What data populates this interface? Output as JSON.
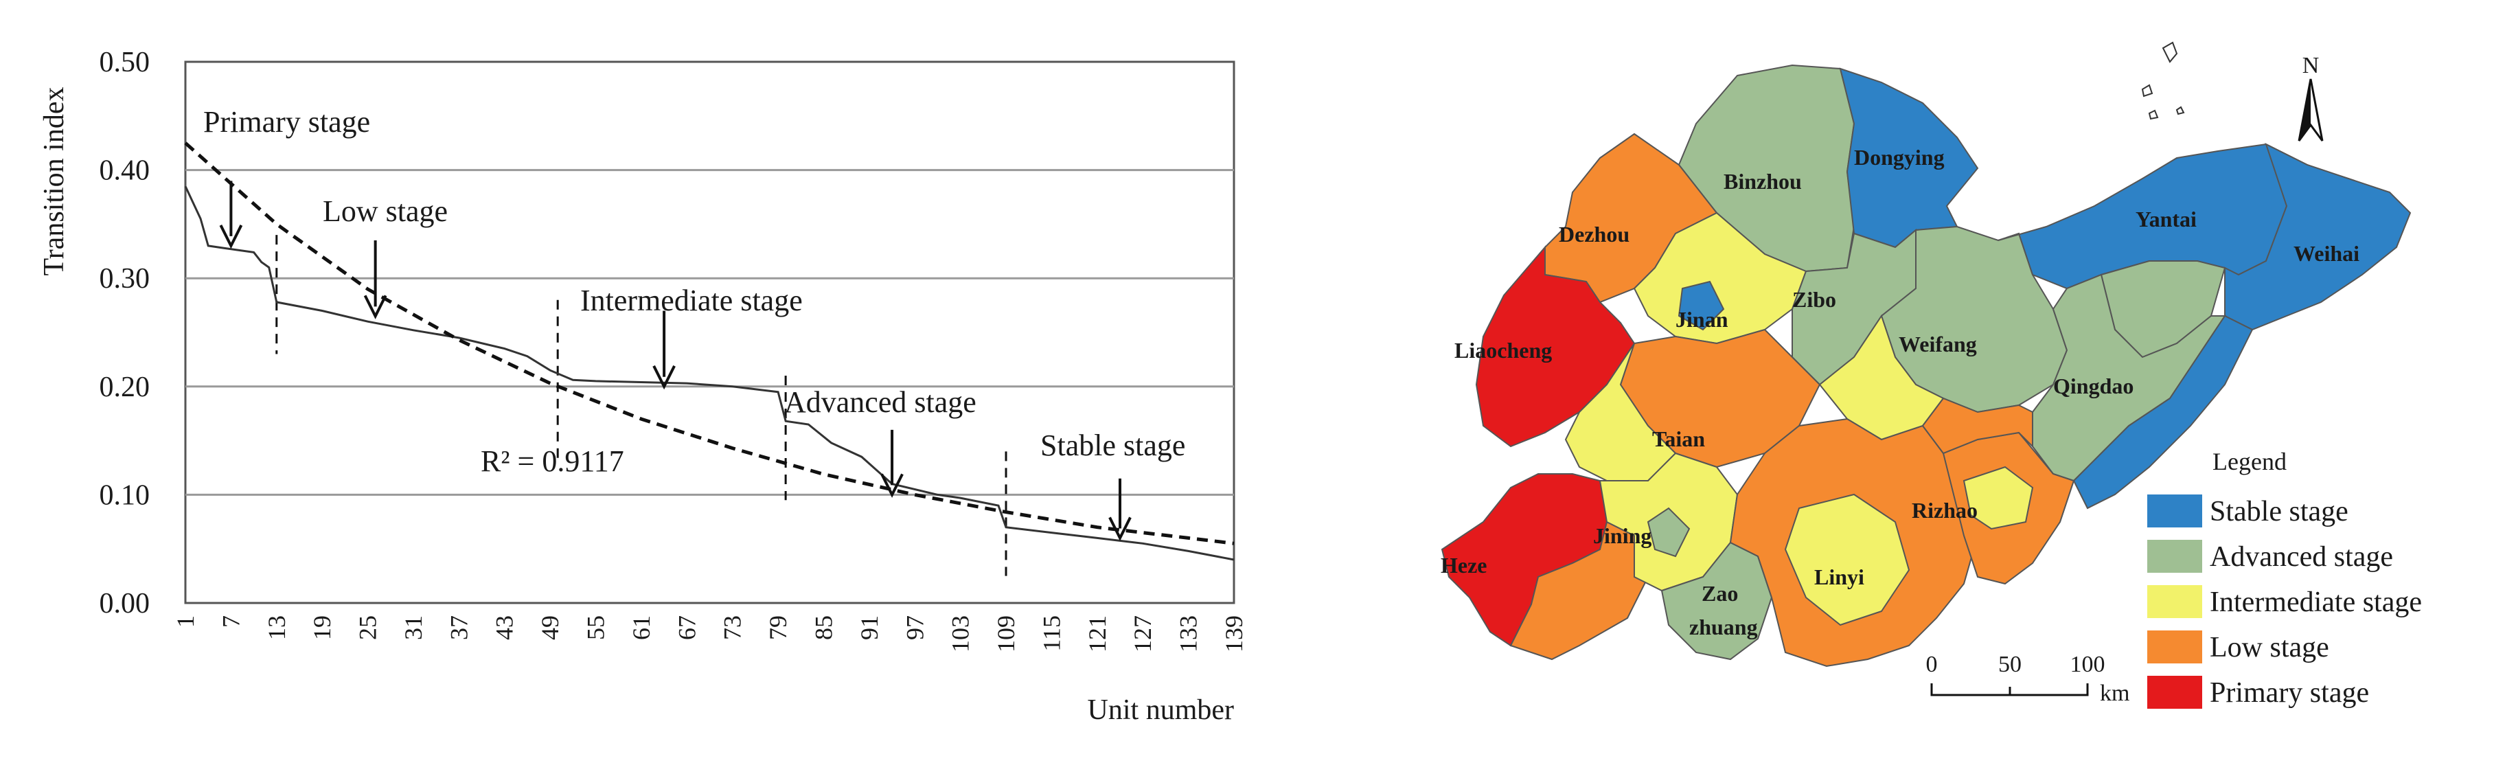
{
  "chart_data": [
    {
      "type": "line",
      "xlabel": "Unit number",
      "ylabel": "Transition index",
      "ylim": [
        0,
        0.5
      ],
      "xlim": [
        1,
        139
      ],
      "grid": "horizontal",
      "y_ticks": [
        "0.00",
        "0.10",
        "0.20",
        "0.30",
        "0.40",
        "0.50"
      ],
      "y_tick_values": [
        0,
        0.1,
        0.2,
        0.3,
        0.4,
        0.5
      ],
      "x_ticks": [
        "1",
        "7",
        "13",
        "19",
        "25",
        "31",
        "37",
        "43",
        "49",
        "55",
        "61",
        "67",
        "73",
        "79",
        "85",
        "91",
        "97",
        "103",
        "109",
        "115",
        "121",
        "127",
        "133",
        "139"
      ],
      "x_tick_values": [
        1,
        7,
        13,
        19,
        25,
        31,
        37,
        43,
        49,
        55,
        61,
        67,
        73,
        79,
        85,
        91,
        97,
        103,
        109,
        115,
        121,
        127,
        133,
        139
      ],
      "series": [
        {
          "style": "solid",
          "x": [
            1,
            3,
            4,
            6,
            10,
            11,
            12,
            13,
            19,
            25,
            31,
            37,
            43,
            46,
            49,
            52,
            55,
            61,
            67,
            73,
            79,
            80,
            83,
            86,
            90,
            94,
            100,
            103,
            108,
            109,
            115,
            121,
            127,
            133,
            139
          ],
          "y": [
            0.385,
            0.355,
            0.33,
            0.328,
            0.324,
            0.315,
            0.31,
            0.278,
            0.27,
            0.26,
            0.252,
            0.245,
            0.235,
            0.228,
            0.215,
            0.206,
            0.205,
            0.204,
            0.203,
            0.2,
            0.195,
            0.168,
            0.165,
            0.148,
            0.135,
            0.11,
            0.1,
            0.097,
            0.09,
            0.07,
            0.065,
            0.06,
            0.055,
            0.048,
            0.04
          ]
        },
        {
          "style": "dashed",
          "fit": "exponential",
          "x": [
            1,
            13,
            25,
            37,
            49,
            61,
            73,
            85,
            97,
            109,
            121,
            133,
            139
          ],
          "y": [
            0.425,
            0.35,
            0.29,
            0.243,
            0.203,
            0.17,
            0.143,
            0.119,
            0.1,
            0.084,
            0.07,
            0.06,
            0.055
          ]
        }
      ],
      "stage_dividers_x": [
        13,
        50,
        80,
        109
      ],
      "annotations": [
        {
          "text": "Primary stage",
          "arrow_to": [
            7,
            0.33
          ]
        },
        {
          "text": "Low stage",
          "arrow_to": [
            26,
            0.265
          ]
        },
        {
          "text": "Intermediate stage",
          "arrow_to": [
            64,
            0.2
          ]
        },
        {
          "text": "Advanced stage",
          "arrow_to": [
            94,
            0.1
          ]
        },
        {
          "text": "Stable stage",
          "arrow_to": [
            124,
            0.06
          ]
        }
      ],
      "r_squared_label": "R² = 0.9117"
    },
    {
      "type": "map",
      "region_labels": [
        "Dongying",
        "Binzhou",
        "Dezhou",
        "Yantai",
        "Weihai",
        "Zibo",
        "Jinan",
        "Weifang",
        "Liaocheng",
        "Qingdao",
        "Taian",
        "Rizhao",
        "Jining",
        "Heze",
        "Linyi",
        "Zao",
        "zhuang"
      ],
      "legend_title": "Legend",
      "legend": [
        {
          "label": "Stable stage",
          "color": "#2e82c6"
        },
        {
          "label": "Advanced stage",
          "color": "#9fbf93"
        },
        {
          "label": "Intermediate stage",
          "color": "#f2f26a"
        },
        {
          "label": "Low stage",
          "color": "#f58a30"
        },
        {
          "label": "Primary stage",
          "color": "#e41a1c"
        }
      ],
      "north_label": "N",
      "scale_bar": {
        "ticks": [
          "0",
          "50",
          "100"
        ],
        "unit": "km"
      }
    }
  ]
}
